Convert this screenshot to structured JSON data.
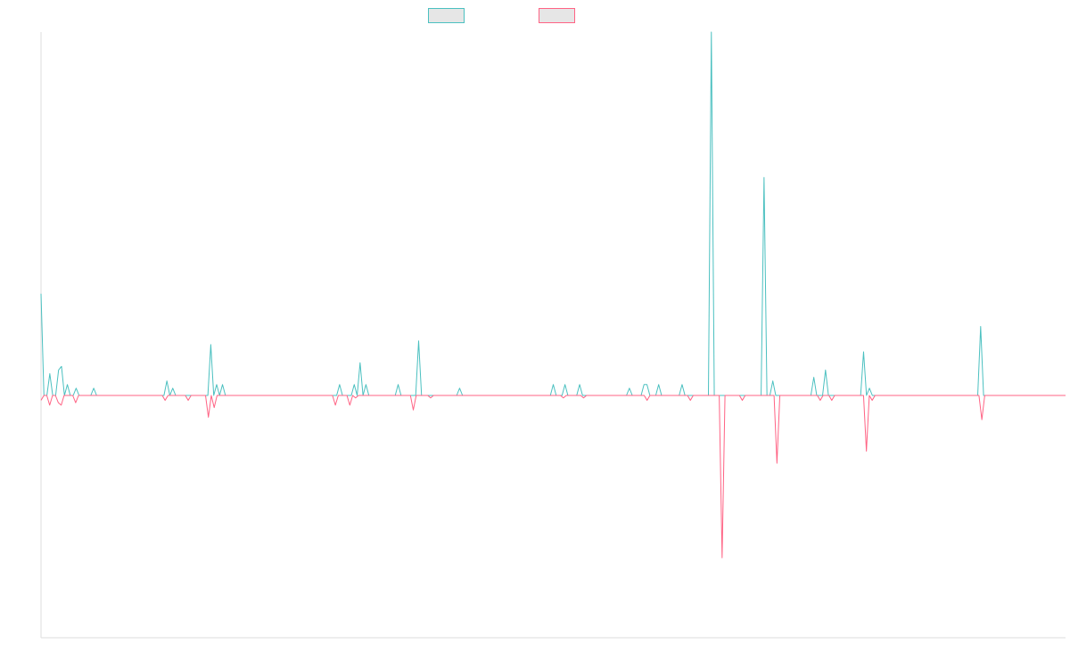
{
  "chart_data": {
    "type": "line",
    "title": "",
    "xlabel": "",
    "ylabel": "",
    "ylim": [
      -1,
      1
    ],
    "grid": false,
    "legend_position": "top-center",
    "colors": {
      "series_a": "#4bc0c0",
      "series_b": "#ff6384",
      "legend_fill": "#e6e6e6",
      "axis": "#dddddd"
    },
    "series": [
      {
        "values": [
          0.28,
          0,
          0,
          0.06,
          0,
          0,
          0.07,
          0.08,
          0,
          0.03,
          0,
          0,
          0.02,
          0,
          0,
          0,
          0,
          0,
          0.02,
          0,
          0,
          0,
          0,
          0,
          0,
          0,
          0,
          0,
          0,
          0,
          0,
          0,
          0,
          0,
          0,
          0,
          0,
          0,
          0,
          0,
          0,
          0,
          0,
          0.04,
          0,
          0.02,
          0,
          0,
          0,
          0,
          0,
          0,
          0,
          0,
          0,
          0,
          0,
          0,
          0.14,
          0,
          0.03,
          0,
          0.03,
          0,
          0,
          0,
          0,
          0,
          0,
          0,
          0,
          0,
          0,
          0,
          0,
          0,
          0,
          0,
          0,
          0,
          0,
          0,
          0,
          0,
          0,
          0,
          0,
          0,
          0,
          0,
          0,
          0,
          0,
          0,
          0,
          0,
          0,
          0,
          0,
          0,
          0,
          0,
          0.03,
          0,
          0,
          0,
          0,
          0.03,
          0,
          0.09,
          0,
          0.03,
          0,
          0,
          0,
          0,
          0,
          0,
          0,
          0,
          0,
          0,
          0.03,
          0,
          0,
          0,
          0,
          0,
          0,
          0.15,
          0,
          0,
          0,
          0,
          0,
          0,
          0,
          0,
          0,
          0,
          0,
          0,
          0,
          0.02,
          0,
          0,
          0,
          0,
          0,
          0,
          0,
          0,
          0,
          0,
          0,
          0,
          0,
          0,
          0,
          0,
          0,
          0,
          0,
          0,
          0,
          0,
          0,
          0,
          0,
          0,
          0,
          0,
          0,
          0,
          0,
          0.03,
          0,
          0,
          0,
          0.03,
          0,
          0,
          0,
          0,
          0.03,
          0,
          0,
          0,
          0,
          0,
          0,
          0,
          0,
          0,
          0,
          0,
          0,
          0,
          0,
          0,
          0,
          0.02,
          0,
          0,
          0,
          0,
          0.03,
          0.03,
          0,
          0,
          0,
          0.03,
          0,
          0,
          0,
          0,
          0,
          0,
          0,
          0.03,
          0,
          0,
          0,
          0,
          0,
          0,
          0,
          0,
          0,
          1.0,
          0,
          0,
          0,
          0,
          0,
          0,
          0,
          0,
          0,
          0,
          0,
          0,
          0,
          0,
          0,
          0,
          0,
          0.6,
          0,
          0,
          0.04,
          0,
          0,
          0,
          0,
          0,
          0,
          0,
          0,
          0,
          0,
          0,
          0,
          0,
          0.05,
          0,
          0,
          0,
          0.07,
          0,
          0,
          0,
          0,
          0,
          0,
          0,
          0,
          0,
          0,
          0,
          0,
          0.12,
          0,
          0.02,
          0,
          0,
          0,
          0,
          0,
          0,
          0,
          0,
          0,
          0,
          0,
          0,
          0,
          0,
          0,
          0,
          0,
          0,
          0,
          0,
          0,
          0,
          0,
          0,
          0,
          0,
          0,
          0,
          0,
          0,
          0,
          0,
          0,
          0,
          0,
          0,
          0,
          0.19,
          0,
          0,
          0,
          0,
          0,
          0,
          0,
          0,
          0,
          0,
          0,
          0,
          0,
          0,
          0,
          0,
          0,
          0,
          0,
          0,
          0,
          0,
          0,
          0,
          0,
          0,
          0,
          0,
          0
        ]
      },
      {
        "values": [
          -0.02,
          0,
          0,
          -0.04,
          0,
          0,
          -0.03,
          -0.04,
          0,
          0,
          0,
          0,
          -0.03,
          0,
          0,
          0,
          0,
          0,
          0,
          0,
          0,
          0,
          0,
          0,
          0,
          0,
          0,
          0,
          0,
          0,
          0,
          0,
          0,
          0,
          0,
          0,
          0,
          0,
          0,
          0,
          0,
          0,
          0,
          -0.02,
          0,
          0,
          0,
          0,
          0,
          0,
          0,
          -0.02,
          0,
          0,
          0,
          0,
          0,
          0,
          -0.09,
          0,
          -0.05,
          0,
          0,
          0,
          0,
          0,
          0,
          0,
          0,
          0,
          0,
          0,
          0,
          0,
          0,
          0,
          0,
          0,
          0,
          0,
          0,
          0,
          0,
          0,
          0,
          0,
          0,
          0,
          0,
          0,
          0,
          0,
          0,
          0,
          0,
          0,
          0,
          0,
          0,
          0,
          0,
          0,
          -0.04,
          0,
          0,
          0,
          0,
          -0.04,
          0,
          -0.01,
          0,
          0,
          0,
          0,
          0,
          0,
          0,
          0,
          0,
          0,
          0,
          0,
          0,
          0,
          0,
          0,
          0,
          0,
          0,
          -0.06,
          0,
          0,
          0,
          0,
          0,
          -0.01,
          0,
          0,
          0,
          0,
          0,
          0,
          0,
          0,
          0,
          0,
          0,
          0,
          0,
          0,
          0,
          0,
          0,
          0,
          0,
          0,
          0,
          0,
          0,
          0,
          0,
          0,
          0,
          0,
          0,
          0,
          0,
          0,
          0,
          0,
          0,
          0,
          0,
          0,
          0,
          0,
          0,
          0,
          0,
          0,
          0,
          -0.01,
          0,
          0,
          0,
          0,
          0,
          0,
          -0.01,
          0,
          0,
          0,
          0,
          0,
          0,
          0,
          0,
          0,
          0,
          0,
          0,
          0,
          0,
          0,
          0,
          0,
          0,
          0,
          0,
          0,
          -0.02,
          0,
          0,
          0,
          0,
          0,
          0,
          0,
          0,
          0,
          0,
          0,
          0,
          0,
          0,
          -0.02,
          0,
          0,
          0,
          0,
          0,
          0,
          0,
          0,
          0,
          0,
          -0.67,
          0,
          0,
          0,
          0,
          0,
          0,
          -0.02,
          0,
          0,
          0,
          0,
          0,
          0,
          0,
          0,
          0,
          0,
          0,
          -0.28,
          0,
          0,
          0,
          0,
          0,
          0,
          0,
          0,
          0,
          0,
          0,
          0,
          0,
          0,
          -0.02,
          0,
          0,
          0,
          -0.02,
          0,
          0,
          0,
          0,
          0,
          0,
          0,
          0,
          0,
          0,
          0,
          -0.23,
          0,
          -0.02,
          0,
          0,
          0,
          0,
          0,
          0,
          0,
          0,
          0,
          0,
          0,
          0,
          0,
          0,
          0,
          0,
          0,
          0,
          0,
          0,
          0,
          0,
          0,
          0,
          0,
          0,
          0,
          0,
          0,
          0,
          0,
          0,
          0,
          0,
          0,
          0,
          0,
          -0.1,
          0,
          0,
          0,
          0,
          0,
          0,
          0,
          0,
          0,
          0,
          0,
          0,
          0,
          0,
          0,
          0,
          0,
          0,
          0,
          0,
          0,
          0,
          0,
          0,
          0,
          0,
          0,
          0,
          0
        ]
      }
    ]
  }
}
